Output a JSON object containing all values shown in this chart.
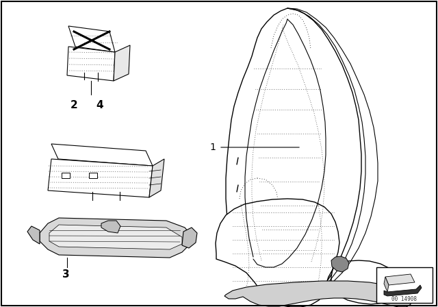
{
  "bg_color": "#ffffff",
  "border_color": "#000000",
  "label_color": "#000000",
  "line_color": "#000000",
  "seat_fill": "#ffffff",
  "seat_edge": "#000000",
  "label_1": "1",
  "label_2": "2",
  "label_3": "3",
  "label_4": "4",
  "part_number": "00 14908",
  "outer_bg": "#e8e8e8"
}
